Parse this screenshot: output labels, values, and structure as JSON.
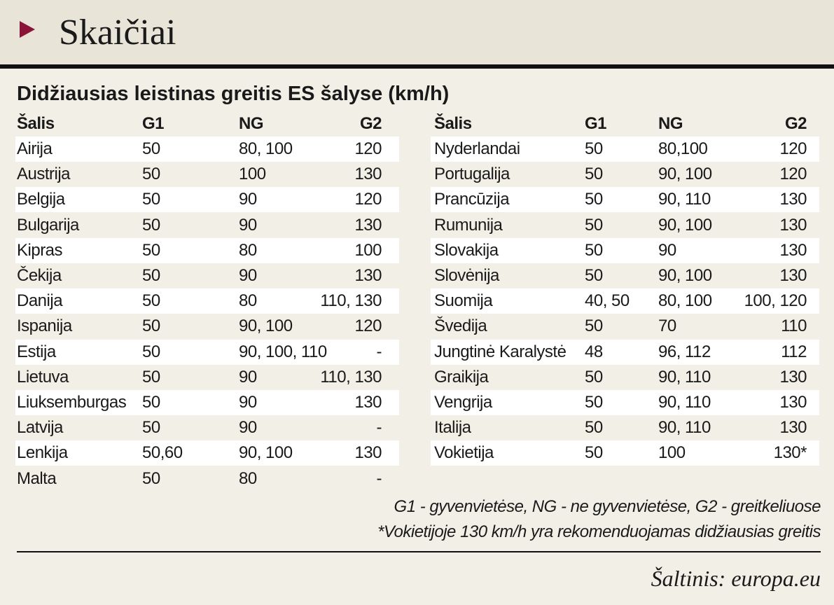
{
  "header": {
    "title": "Skaičiai"
  },
  "subtitle": "Didžiausias leistinas greitis ES šalyse (km/h)",
  "tables": [
    {
      "columns": [
        "Šalis",
        "G1",
        "NG",
        "G2"
      ],
      "rows": [
        [
          "Airija",
          "50",
          "80, 100",
          "120"
        ],
        [
          "Austrija",
          "50",
          "100",
          "130"
        ],
        [
          "Belgija",
          "50",
          "90",
          "120"
        ],
        [
          "Bulgarija",
          "50",
          "90",
          "130"
        ],
        [
          "Kipras",
          "50",
          "80",
          "100"
        ],
        [
          "Čekija",
          "50",
          "90",
          "130"
        ],
        [
          "Danija",
          "50",
          "80",
          "110, 130"
        ],
        [
          "Ispanija",
          "50",
          "90, 100",
          "120"
        ],
        [
          "Estija",
          "50",
          "90, 100, 110",
          "-"
        ],
        [
          "Lietuva",
          "50",
          "90",
          "110, 130"
        ],
        [
          "Liuksemburgas",
          "50",
          "90",
          "130"
        ],
        [
          "Latvija",
          "50",
          "90",
          "-"
        ],
        [
          "Lenkija",
          "50,60",
          "90, 100",
          "130"
        ],
        [
          "Malta",
          "50",
          "80",
          "-"
        ]
      ]
    },
    {
      "columns": [
        "Šalis",
        "G1",
        "NG",
        "G2"
      ],
      "rows": [
        [
          "Nyderlandai",
          "50",
          "80,100",
          "120"
        ],
        [
          "Portugalija",
          "50",
          "90, 100",
          "120"
        ],
        [
          "Prancūzija",
          "50",
          "90, 110",
          "130"
        ],
        [
          "Rumunija",
          "50",
          "90, 100",
          "130"
        ],
        [
          "Slovakija",
          "50",
          "90",
          "130"
        ],
        [
          "Slovėnija",
          "50",
          "90, 100",
          "130"
        ],
        [
          "Suomija",
          "40, 50",
          "80, 100",
          "100, 120"
        ],
        [
          "Švedija",
          "50",
          "70",
          "110"
        ],
        [
          "Jungtinė Karalystė",
          "48",
          "96, 112",
          "112"
        ],
        [
          "Graikija",
          "50",
          "90, 110",
          "130"
        ],
        [
          "Vengrija",
          "50",
          "90, 110",
          "130"
        ],
        [
          "Italija",
          "50",
          "90, 110",
          "130"
        ],
        [
          "Vokietija",
          "50",
          "100",
          "130*"
        ]
      ]
    }
  ],
  "notes": [
    "G1 - gyvenvietėse, NG - ne gyvenvietėse, G2 - greitkeliuose",
    "*Vokietijoje 130 km/h yra rekomenduojamas didžiausias greitis"
  ],
  "source": "Šaltinis: europa.eu"
}
